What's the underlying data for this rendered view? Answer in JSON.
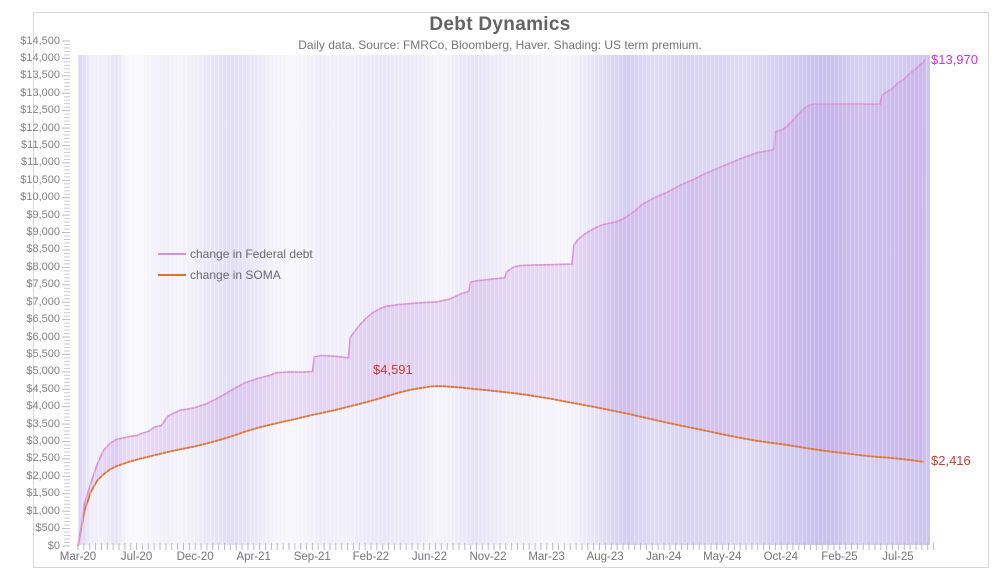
{
  "title": "Debt Dynamics",
  "subtitle": "Daily data.  Source: FMRCo, Bloomberg, Haver.  Shading: US term premium.",
  "legend": {
    "items": [
      {
        "label": "change in Federal debt",
        "color": "#DC8CDC"
      },
      {
        "label": "change in SOMA",
        "color": "#E2702F"
      }
    ]
  },
  "annotations": {
    "federal_end": {
      "text": "$13,970",
      "color": "#CC33CC"
    },
    "soma_peak": {
      "text": "$4,591",
      "color": "#CF3B30"
    },
    "soma_end": {
      "text": "$2,416",
      "color": "#CF3B30"
    }
  },
  "colors": {
    "federal_line": "#DC8CDC",
    "soma_line": "#E2702F",
    "between_fill": "rgba(195,140,225,0.26)",
    "shading_base": "130,110,220",
    "tick": "#b9b9c2",
    "tick_minor": "#c9c9d1"
  },
  "axes": {
    "ymax": 14500,
    "ymin": 0,
    "ystep": 500,
    "yminor": 100,
    "y_tick_labels": [
      "$14,500",
      "$14,000",
      "$13,500",
      "$13,000",
      "$12,500",
      "$12,000",
      "$11,500",
      "$11,000",
      "$10,500",
      "$10,000",
      "$9,500",
      "$9,000",
      "$8,500",
      "$8,000",
      "$7,500",
      "$7,000",
      "$6,500",
      "$6,000",
      "$5,500",
      "$5,000",
      "$4,500",
      "$4,000",
      "$3,500",
      "$3,000",
      "$2,500",
      "$2,000",
      "$1,500",
      "$1,000",
      "$500",
      "$0"
    ],
    "x_tick_labels": [
      "Mar-20",
      "Jul-20",
      "Dec-20",
      "Apr-21",
      "Sep-21",
      "Feb-22",
      "Jun-22",
      "Nov-22",
      "Mar-23",
      "Aug-23",
      "Jan-24",
      "May-24",
      "Oct-24",
      "Feb-25",
      "Jul-25"
    ]
  },
  "chart_data": {
    "type": "line",
    "title": "Debt Dynamics",
    "x_unit": "months since Mar-2020 (daily data)",
    "y_unit": "$ billions (cumulative change)",
    "ylim": [
      0,
      14500
    ],
    "x_tick_labels": [
      "Mar-20",
      "Jul-20",
      "Dec-20",
      "Apr-21",
      "Sep-21",
      "Feb-22",
      "Jun-22",
      "Nov-22",
      "Mar-23",
      "Aug-23",
      "Jan-24",
      "May-24",
      "Oct-24",
      "Feb-25",
      "Jul-25"
    ],
    "legend_position": "upper-left-inside",
    "series": [
      {
        "name": "change in Federal debt",
        "color": "#DC8CDC",
        "end_label": "$13,970",
        "points": [
          [
            0,
            0
          ],
          [
            0.2,
            400
          ],
          [
            0.5,
            1200
          ],
          [
            1,
            1800
          ],
          [
            1.5,
            2350
          ],
          [
            2,
            2750
          ],
          [
            2.5,
            2950
          ],
          [
            3,
            3060
          ],
          [
            3.5,
            3100
          ],
          [
            4,
            3140
          ],
          [
            4.6,
            3170
          ],
          [
            5,
            3240
          ],
          [
            5.5,
            3290
          ],
          [
            6,
            3420
          ],
          [
            6.5,
            3460
          ],
          [
            7,
            3720
          ],
          [
            7.5,
            3820
          ],
          [
            8,
            3900
          ],
          [
            9,
            3960
          ],
          [
            10,
            4080
          ],
          [
            11,
            4260
          ],
          [
            12,
            4480
          ],
          [
            13,
            4680
          ],
          [
            14,
            4810
          ],
          [
            15,
            4900
          ],
          [
            15.5,
            4975
          ],
          [
            16.5,
            5000
          ],
          [
            17.5,
            4990
          ],
          [
            18.3,
            5010
          ],
          [
            18.45,
            5430
          ],
          [
            19,
            5470
          ],
          [
            20,
            5450
          ],
          [
            21.1,
            5400
          ],
          [
            21.25,
            6000
          ],
          [
            22,
            6350
          ],
          [
            22.5,
            6550
          ],
          [
            23,
            6700
          ],
          [
            23.5,
            6800
          ],
          [
            24,
            6880
          ],
          [
            25,
            6930
          ],
          [
            26,
            6960
          ],
          [
            27,
            6990
          ],
          [
            28,
            7010
          ],
          [
            29,
            7090
          ],
          [
            30,
            7260
          ],
          [
            30.5,
            7310
          ],
          [
            30.65,
            7580
          ],
          [
            31,
            7610
          ],
          [
            32,
            7650
          ],
          [
            33.3,
            7700
          ],
          [
            33.45,
            7870
          ],
          [
            34,
            8010
          ],
          [
            34.5,
            8050
          ],
          [
            35.5,
            8065
          ],
          [
            36.5,
            8075
          ],
          [
            37.5,
            8085
          ],
          [
            38.55,
            8095
          ],
          [
            38.7,
            8640
          ],
          [
            39,
            8790
          ],
          [
            39.5,
            8950
          ],
          [
            40,
            9060
          ],
          [
            40.5,
            9160
          ],
          [
            41,
            9230
          ],
          [
            41.5,
            9270
          ],
          [
            42,
            9310
          ],
          [
            42.5,
            9390
          ],
          [
            43,
            9500
          ],
          [
            43.5,
            9630
          ],
          [
            44,
            9800
          ],
          [
            44.5,
            9900
          ],
          [
            45,
            10000
          ],
          [
            45.5,
            10080
          ],
          [
            46,
            10160
          ],
          [
            47,
            10360
          ],
          [
            48,
            10520
          ],
          [
            49,
            10700
          ],
          [
            50,
            10860
          ],
          [
            51,
            11010
          ],
          [
            52,
            11160
          ],
          [
            53,
            11290
          ],
          [
            54.3,
            11380
          ],
          [
            54.45,
            11890
          ],
          [
            55,
            11960
          ],
          [
            55.5,
            12110
          ],
          [
            56,
            12310
          ],
          [
            56.5,
            12510
          ],
          [
            57,
            12650
          ],
          [
            57.4,
            12685
          ],
          [
            58,
            12690
          ],
          [
            59,
            12690
          ],
          [
            60,
            12690
          ],
          [
            61,
            12690
          ],
          [
            62,
            12685
          ],
          [
            62.6,
            12690
          ],
          [
            62.75,
            12950
          ],
          [
            63,
            13010
          ],
          [
            63.5,
            13120
          ],
          [
            64,
            13300
          ],
          [
            64.4,
            13380
          ],
          [
            64.7,
            13490
          ],
          [
            65,
            13590
          ],
          [
            65.4,
            13700
          ],
          [
            65.7,
            13820
          ],
          [
            66,
            13900
          ],
          [
            66.1,
            13970
          ]
        ]
      },
      {
        "name": "change in SOMA",
        "color": "#E2702F",
        "peak_label": "$4,591",
        "end_label": "$2,416",
        "points": [
          [
            0,
            0
          ],
          [
            0.25,
            500
          ],
          [
            0.5,
            1000
          ],
          [
            1,
            1550
          ],
          [
            1.5,
            1880
          ],
          [
            2,
            2060
          ],
          [
            2.5,
            2200
          ],
          [
            3,
            2290
          ],
          [
            4,
            2420
          ],
          [
            5,
            2520
          ],
          [
            6,
            2610
          ],
          [
            7,
            2700
          ],
          [
            8,
            2780
          ],
          [
            9,
            2850
          ],
          [
            10,
            2940
          ],
          [
            11,
            3040
          ],
          [
            12,
            3150
          ],
          [
            13,
            3280
          ],
          [
            14,
            3390
          ],
          [
            15,
            3480
          ],
          [
            16,
            3570
          ],
          [
            17,
            3650
          ],
          [
            18,
            3740
          ],
          [
            19,
            3820
          ],
          [
            20,
            3900
          ],
          [
            21,
            3990
          ],
          [
            22,
            4080
          ],
          [
            23,
            4180
          ],
          [
            24,
            4290
          ],
          [
            25,
            4400
          ],
          [
            26,
            4490
          ],
          [
            27,
            4550
          ],
          [
            27.5,
            4580
          ],
          [
            28,
            4591
          ],
          [
            28.5,
            4588
          ],
          [
            29,
            4575
          ],
          [
            30,
            4545
          ],
          [
            31,
            4505
          ],
          [
            32,
            4470
          ],
          [
            33,
            4430
          ],
          [
            34,
            4390
          ],
          [
            35,
            4340
          ],
          [
            36,
            4280
          ],
          [
            37,
            4220
          ],
          [
            38,
            4150
          ],
          [
            39,
            4080
          ],
          [
            40,
            4010
          ],
          [
            41,
            3940
          ],
          [
            42,
            3865
          ],
          [
            43,
            3790
          ],
          [
            44,
            3705
          ],
          [
            45,
            3620
          ],
          [
            46,
            3540
          ],
          [
            47,
            3460
          ],
          [
            48,
            3385
          ],
          [
            49,
            3310
          ],
          [
            50,
            3230
          ],
          [
            51,
            3155
          ],
          [
            52,
            3085
          ],
          [
            53,
            3020
          ],
          [
            54,
            2965
          ],
          [
            55,
            2920
          ],
          [
            56,
            2860
          ],
          [
            57,
            2800
          ],
          [
            58,
            2748
          ],
          [
            59,
            2700
          ],
          [
            60,
            2655
          ],
          [
            61,
            2610
          ],
          [
            62,
            2570
          ],
          [
            63,
            2540
          ],
          [
            64,
            2510
          ],
          [
            65,
            2465
          ],
          [
            66,
            2416
          ]
        ]
      }
    ],
    "shading": {
      "label": "US term premium",
      "note": "vertical background shading intensity (0-1 alpha) by month index",
      "points": [
        [
          0,
          0.3
        ],
        [
          0.5,
          0.22
        ],
        [
          1,
          0.12
        ],
        [
          2,
          0.1
        ],
        [
          3,
          0.2
        ],
        [
          3.5,
          0.1
        ],
        [
          4,
          0.05
        ],
        [
          5,
          0.05
        ],
        [
          6,
          0.09
        ],
        [
          7,
          0.11
        ],
        [
          8,
          0.08
        ],
        [
          9,
          0.11
        ],
        [
          10,
          0.15
        ],
        [
          11,
          0.2
        ],
        [
          12,
          0.23
        ],
        [
          13,
          0.19
        ],
        [
          14,
          0.16
        ],
        [
          15,
          0.1
        ],
        [
          16,
          0.07
        ],
        [
          17,
          0.06
        ],
        [
          18,
          0.09
        ],
        [
          19,
          0.13
        ],
        [
          20,
          0.1
        ],
        [
          21,
          0.1
        ],
        [
          22,
          0.13
        ],
        [
          23,
          0.15
        ],
        [
          24,
          0.17
        ],
        [
          25,
          0.14
        ],
        [
          26,
          0.15
        ],
        [
          27,
          0.12
        ],
        [
          28,
          0.08
        ],
        [
          29,
          0.1
        ],
        [
          30,
          0.15
        ],
        [
          31,
          0.19
        ],
        [
          32,
          0.16
        ],
        [
          33,
          0.12
        ],
        [
          34,
          0.1
        ],
        [
          35,
          0.11
        ],
        [
          36,
          0.08
        ],
        [
          37,
          0.08
        ],
        [
          38,
          0.06
        ],
        [
          39,
          0.11
        ],
        [
          40,
          0.17
        ],
        [
          41,
          0.23
        ],
        [
          42,
          0.3
        ],
        [
          43,
          0.34
        ],
        [
          44,
          0.28
        ],
        [
          45,
          0.25
        ],
        [
          46,
          0.27
        ],
        [
          47,
          0.29
        ],
        [
          48,
          0.31
        ],
        [
          49,
          0.28
        ],
        [
          50,
          0.3
        ],
        [
          51,
          0.27
        ],
        [
          52,
          0.25
        ],
        [
          53,
          0.27
        ],
        [
          54,
          0.31
        ],
        [
          55,
          0.34
        ],
        [
          56,
          0.37
        ],
        [
          57,
          0.4
        ],
        [
          58,
          0.44
        ],
        [
          59,
          0.42
        ],
        [
          60,
          0.36
        ],
        [
          61,
          0.32
        ],
        [
          62,
          0.34
        ],
        [
          63,
          0.36
        ],
        [
          64,
          0.36
        ],
        [
          65,
          0.38
        ],
        [
          66,
          0.4
        ]
      ]
    }
  }
}
